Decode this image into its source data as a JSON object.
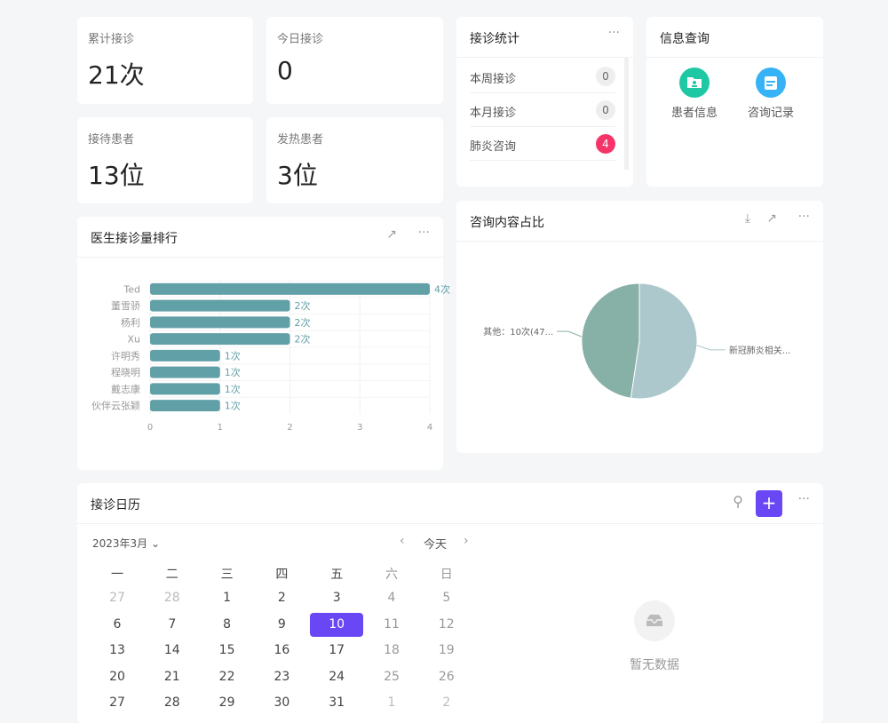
{
  "stats": [
    {
      "label": "累计接诊",
      "value": "21次"
    },
    {
      "label": "今日接诊",
      "value": "0"
    },
    {
      "label": "接待患者",
      "value": "13位"
    },
    {
      "label": "发热患者",
      "value": "3位"
    }
  ],
  "visit_stats": {
    "title": "接诊统计",
    "items": [
      {
        "label": "本周接诊",
        "count": "0"
      },
      {
        "label": "本月接诊",
        "count": "0"
      },
      {
        "label": "肺炎咨询",
        "count": "4"
      }
    ]
  },
  "info_query": {
    "title": "信息查询",
    "items": [
      {
        "label": "患者信息",
        "icon": "patient-folder-icon",
        "color": "#1ec8a5"
      },
      {
        "label": "咨询记录",
        "icon": "calendar-record-icon",
        "color": "#36b3f6"
      }
    ]
  },
  "ranking": {
    "title": "医生接诊量排行"
  },
  "pie": {
    "title": "咨询内容占比"
  },
  "chart_data": [
    {
      "type": "bar",
      "orientation": "horizontal",
      "categories": [
        "Ted",
        "董雪骄",
        "杨利",
        "Xu",
        "许明秀",
        "程晓明",
        "戴志康",
        "伙伴云张颖"
      ],
      "values": [
        4,
        2,
        2,
        2,
        1,
        1,
        1,
        1
      ],
      "data_labels": [
        "4次",
        "2次",
        "2次",
        "2次",
        "1次",
        "1次",
        "1次",
        "1次"
      ],
      "xlim": [
        0,
        4
      ],
      "xticks": [
        "0",
        "1",
        "2",
        "3",
        "4"
      ],
      "grid": true,
      "color": "#62a0a8"
    },
    {
      "type": "pie",
      "slices": [
        {
          "name": "新冠肺炎相关...",
          "value": 11,
          "color": "#acc8cc"
        },
        {
          "name": "其他：10次(47...",
          "value": 10,
          "color": "#87b0a6"
        }
      ]
    }
  ],
  "calendar": {
    "title": "接诊日历",
    "month": "2023年3月",
    "today": "今天",
    "weekdays": [
      "一",
      "二",
      "三",
      "四",
      "五",
      "六",
      "日"
    ],
    "days": [
      "27",
      "28",
      "1",
      "2",
      "3",
      "4",
      "5",
      "6",
      "7",
      "8",
      "9",
      "10",
      "11",
      "12",
      "13",
      "14",
      "15",
      "16",
      "17",
      "18",
      "19",
      "20",
      "21",
      "22",
      "23",
      "24",
      "25",
      "26",
      "27",
      "28",
      "29",
      "30",
      "31",
      "1",
      "2"
    ],
    "selected": "10",
    "empty": "暂无数据",
    "accent": "#6a47f5"
  }
}
